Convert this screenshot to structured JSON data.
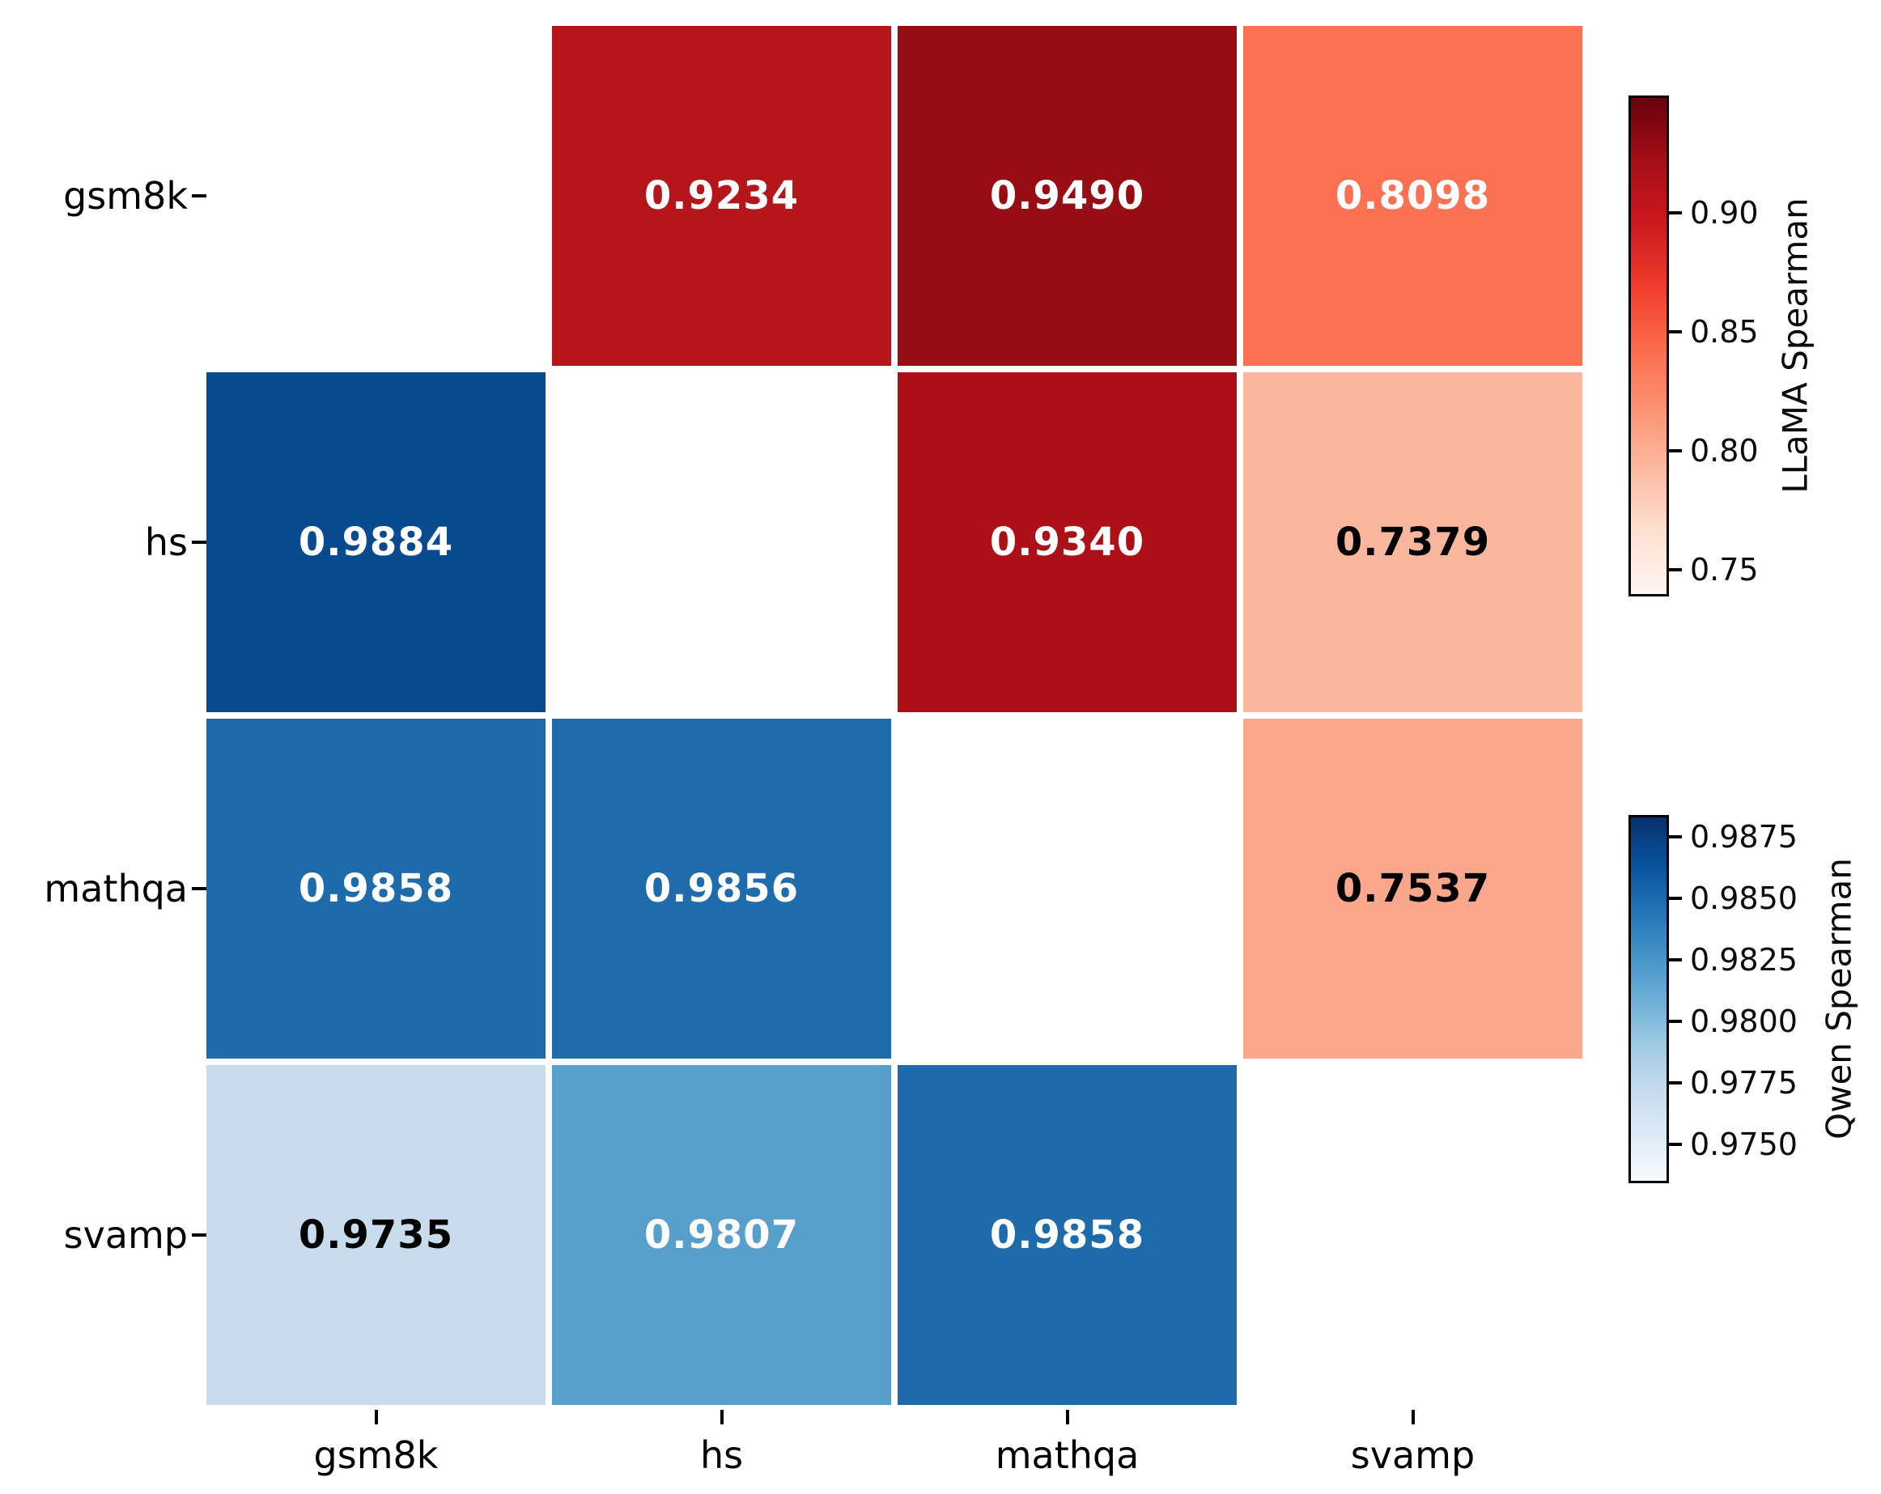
{
  "chart_data": {
    "type": "heatmap",
    "description": "Pairwise Spearman correlation matrix across benchmarks; upper triangle = LLaMA (Reds), lower triangle = Qwen (Blues), diagonal empty",
    "categories": [
      "gsm8k",
      "hs",
      "mathqa",
      "svamp"
    ],
    "x_tick_labels": [
      "gsm8k",
      "hs",
      "mathqa",
      "svamp"
    ],
    "y_tick_labels": [
      "gsm8k",
      "hs",
      "mathqa",
      "svamp"
    ],
    "grid": false,
    "series": [
      {
        "name": "LLaMA Spearman (upper triangle)",
        "pairs": [
          {
            "row": "gsm8k",
            "col": "hs",
            "value": 0.9234
          },
          {
            "row": "gsm8k",
            "col": "mathqa",
            "value": 0.949
          },
          {
            "row": "gsm8k",
            "col": "svamp",
            "value": 0.8098
          },
          {
            "row": "hs",
            "col": "mathqa",
            "value": 0.934
          },
          {
            "row": "hs",
            "col": "svamp",
            "value": 0.7379
          },
          {
            "row": "mathqa",
            "col": "svamp",
            "value": 0.7537
          }
        ]
      },
      {
        "name": "Qwen Spearman (lower triangle)",
        "pairs": [
          {
            "row": "hs",
            "col": "gsm8k",
            "value": 0.9884
          },
          {
            "row": "mathqa",
            "col": "gsm8k",
            "value": 0.9858
          },
          {
            "row": "mathqa",
            "col": "hs",
            "value": 0.9856
          },
          {
            "row": "svamp",
            "col": "gsm8k",
            "value": 0.9735
          },
          {
            "row": "svamp",
            "col": "hs",
            "value": 0.9807
          },
          {
            "row": "svamp",
            "col": "mathqa",
            "value": 0.9858
          }
        ]
      }
    ],
    "cells": [
      {
        "row": 0,
        "col": 1,
        "label": "0.9234",
        "bg": "#b5161b",
        "fg": "#ffffff"
      },
      {
        "row": 0,
        "col": 2,
        "label": "0.9490",
        "bg": "#970d13",
        "fg": "#ffffff"
      },
      {
        "row": 0,
        "col": 3,
        "label": "0.8098",
        "bg": "#fb7151",
        "fg": "#ffffff"
      },
      {
        "row": 1,
        "col": 0,
        "label": "0.9884",
        "bg": "#084a8e",
        "fg": "#ffffff"
      },
      {
        "row": 1,
        "col": 2,
        "label": "0.9340",
        "bg": "#ad1117",
        "fg": "#ffffff"
      },
      {
        "row": 1,
        "col": 3,
        "label": "0.7379",
        "bg": "#fab79d",
        "fg": "#000000"
      },
      {
        "row": 2,
        "col": 0,
        "label": "0.9858",
        "bg": "#1e6bac",
        "fg": "#ffffff"
      },
      {
        "row": 2,
        "col": 1,
        "label": "0.9856",
        "bg": "#1f6cad",
        "fg": "#ffffff"
      },
      {
        "row": 2,
        "col": 3,
        "label": "0.7537",
        "bg": "#fba78c",
        "fg": "#000000"
      },
      {
        "row": 3,
        "col": 0,
        "label": "0.9735",
        "bg": "#c8dcee",
        "fg": "#000000"
      },
      {
        "row": 3,
        "col": 1,
        "label": "0.9807",
        "bg": "#58a0cc",
        "fg": "#ffffff"
      },
      {
        "row": 3,
        "col": 2,
        "label": "0.9858",
        "bg": "#1e6bac",
        "fg": "#ffffff"
      }
    ],
    "colorbars": [
      {
        "title": "LLaMA Spearman",
        "colormap": "Reds",
        "range": [
          0.7379,
          0.949
        ],
        "legend_position": "right-top",
        "ticks": [
          {
            "label": "0.90",
            "pct": 23.4
          },
          {
            "label": "0.85",
            "pct": 47.2
          },
          {
            "label": "0.80",
            "pct": 70.9
          },
          {
            "label": "0.75",
            "pct": 94.7
          }
        ],
        "gradient": [
          "#67000d",
          "#a50f15",
          "#cb181d",
          "#ef3b2c",
          "#fb6a4a",
          "#fc9272",
          "#fcbba1",
          "#fee0d2",
          "#fff5f0"
        ]
      },
      {
        "title": "Qwen Spearman",
        "colormap": "Blues",
        "range": [
          0.9735,
          0.9884
        ],
        "legend_position": "right-bottom",
        "ticks": [
          {
            "label": "0.9875",
            "pct": 5.9
          },
          {
            "label": "0.9850",
            "pct": 22.6
          },
          {
            "label": "0.9825",
            "pct": 39.3
          },
          {
            "label": "0.9800",
            "pct": 56.0
          },
          {
            "label": "0.9775",
            "pct": 72.7
          },
          {
            "label": "0.9750",
            "pct": 89.5
          }
        ],
        "gradient": [
          "#08306b",
          "#08519c",
          "#2171b5",
          "#4292c6",
          "#6baed6",
          "#9ecae1",
          "#c6dbef",
          "#deebf7",
          "#f7fbff"
        ]
      }
    ]
  }
}
